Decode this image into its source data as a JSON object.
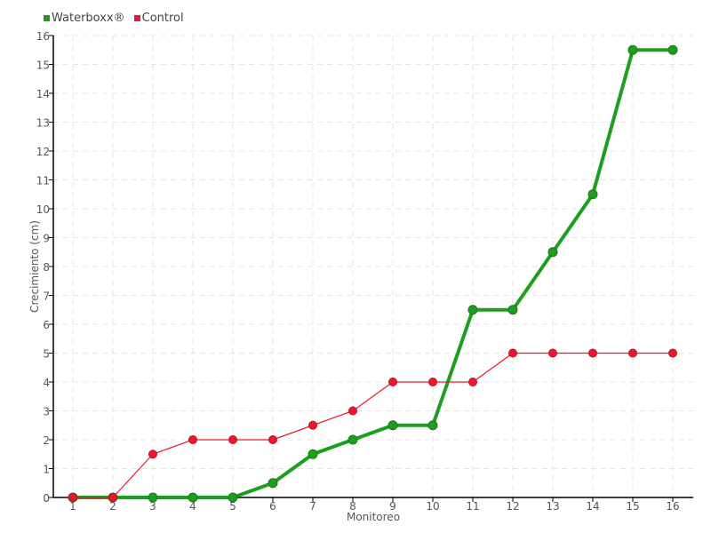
{
  "chart_data": {
    "type": "line",
    "title": "",
    "xlabel": "Monitoreo",
    "ylabel": "Crecimiento (cm)",
    "x": [
      1,
      2,
      3,
      4,
      5,
      6,
      7,
      8,
      9,
      10,
      11,
      12,
      13,
      14,
      15,
      16
    ],
    "xlim": [
      0.5,
      17
    ],
    "ylim": [
      0,
      16
    ],
    "yticks": [
      0,
      1,
      2,
      3,
      4,
      5,
      6,
      7,
      8,
      9,
      10,
      11,
      12,
      13,
      14,
      15,
      16
    ],
    "grid": true,
    "legend": "top-left",
    "series": [
      {
        "name": "Waterboxx®",
        "color": "#1e9e1e",
        "values": [
          0,
          0,
          0,
          0,
          0,
          0.5,
          1.5,
          2,
          2.5,
          2.5,
          6.5,
          6.5,
          8.5,
          10.5,
          15.5,
          15.5
        ]
      },
      {
        "name": "Control",
        "color": "#e8192c",
        "values": [
          0,
          0,
          1.5,
          2,
          2,
          2,
          2.5,
          3,
          4,
          4,
          4,
          5,
          5,
          5,
          5,
          5
        ]
      }
    ]
  }
}
